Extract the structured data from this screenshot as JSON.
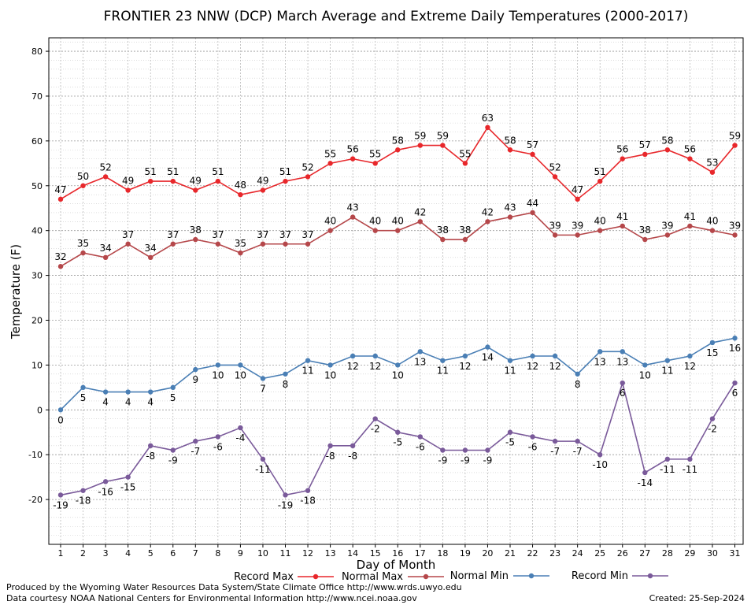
{
  "chart_data": {
    "type": "line",
    "title": "FRONTIER 23 NNW (DCP) March Average and Extreme Daily Temperatures (2000-2017)",
    "xlabel": "Day of Month",
    "ylabel": "Temperature (F)",
    "ylim": [
      -30,
      83
    ],
    "yticks": [
      -20,
      -10,
      0,
      10,
      20,
      30,
      40,
      50,
      60,
      70,
      80
    ],
    "x": [
      1,
      2,
      3,
      4,
      5,
      6,
      7,
      8,
      9,
      10,
      11,
      12,
      13,
      14,
      15,
      16,
      17,
      18,
      19,
      20,
      21,
      22,
      23,
      24,
      25,
      26,
      27,
      28,
      29,
      30,
      31
    ],
    "grid": true,
    "legend_position": "bottom",
    "series": [
      {
        "name": "Record Max",
        "color": "#e8272b",
        "label_pos": "above",
        "values": [
          47,
          50,
          52,
          49,
          51,
          51,
          49,
          51,
          48,
          49,
          51,
          52,
          55,
          56,
          55,
          58,
          59,
          59,
          55,
          63,
          58,
          57,
          52,
          47,
          51,
          56,
          57,
          58,
          56,
          53,
          59
        ]
      },
      {
        "name": "Normal Max",
        "color": "#b5474a",
        "label_pos": "above",
        "values": [
          32,
          35,
          34,
          37,
          34,
          37,
          38,
          37,
          35,
          37,
          37,
          37,
          40,
          43,
          40,
          40,
          42,
          38,
          38,
          42,
          43,
          44,
          39,
          39,
          40,
          41,
          38,
          39,
          41,
          40,
          39
        ]
      },
      {
        "name": "Normal Min",
        "color": "#4a7fb5",
        "label_pos": "below",
        "values": [
          0,
          5,
          4,
          4,
          4,
          5,
          9,
          10,
          10,
          7,
          8,
          11,
          10,
          12,
          12,
          10,
          13,
          11,
          12,
          14,
          11,
          12,
          12,
          8,
          13,
          13,
          10,
          11,
          12,
          15,
          16
        ]
      },
      {
        "name": "Record Min",
        "color": "#7a5a9a",
        "label_pos": "below",
        "values": [
          -19,
          -18,
          -16,
          -15,
          -8,
          -9,
          -7,
          -6,
          -4,
          -11,
          -19,
          -18,
          -8,
          -8,
          -2,
          -5,
          -6,
          -9,
          -9,
          -9,
          -5,
          -6,
          -7,
          -7,
          -10,
          6,
          -14,
          -11,
          -11,
          -2,
          6
        ]
      }
    ]
  },
  "footer": {
    "line1": "Produced by the Wyoming Water Resources Data System/State Climate Office http://www.wrds.uwyo.edu",
    "line2": "Data courtesy NOAA National Centers for Environmental Information http://www.ncei.noaa.gov",
    "created": "Created:  25-Sep-2024"
  }
}
